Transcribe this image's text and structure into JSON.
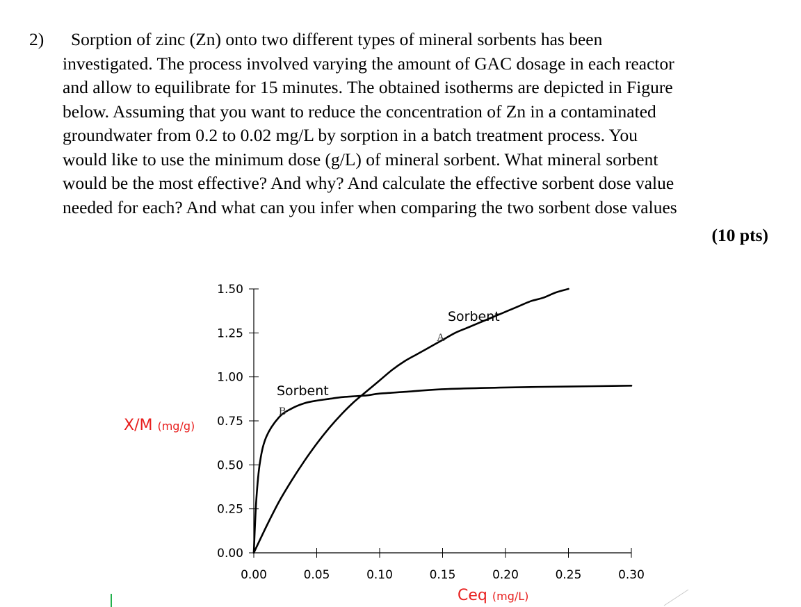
{
  "question": {
    "number": "2)",
    "lines": [
      "Sorption of zinc (Zn) onto two different types of mineral sorbents has been",
      "investigated. The process involved varying the amount of GAC dosage in each reactor",
      "and allow to equilibrate for 15 minutes. The obtained isotherms are depicted in Figure",
      "below. Assuming that you want to reduce the concentration of Zn in a contaminated",
      "groundwater from 0.2 to 0.02 mg/L by sorption in a batch treatment process. You",
      "would like to use the minimum dose (g/L) of mineral sorbent. What mineral sorbent",
      "would be the most effective? And why? And calculate the effective sorbent dose value",
      "needed for each? And what can you infer when comparing the two sorbent dose values"
    ],
    "points": "(10 pts)"
  },
  "chart_data": {
    "type": "line",
    "xlabel": "Ceq (mg/L)",
    "xlabel_main": "Ceq",
    "xlabel_unit": "(mg/L)",
    "ylabel": "X/M (mg/g)",
    "ylabel_main": "X/M",
    "ylabel_unit": "(mg/g)",
    "xlim": [
      0,
      0.3
    ],
    "ylim": [
      0,
      1.5
    ],
    "x_ticks": [
      "0.00",
      "0.05",
      "0.10",
      "0.15",
      "0.20",
      "0.25",
      "0.30"
    ],
    "y_ticks": [
      "0.00",
      "0.25",
      "0.50",
      "0.75",
      "1.00",
      "1.25",
      "1.50"
    ],
    "grid": false,
    "axis_title_color": "#e8201f",
    "series": [
      {
        "name": "Sorbent A",
        "label_word": "Sorbent",
        "label_letter": "A",
        "x": [
          0,
          0.01,
          0.02,
          0.03,
          0.04,
          0.05,
          0.06,
          0.07,
          0.08,
          0.09,
          0.1,
          0.11,
          0.12,
          0.13,
          0.14,
          0.15,
          0.16,
          0.17,
          0.18,
          0.19,
          0.2,
          0.21,
          0.22,
          0.23,
          0.24,
          0.25
        ],
        "y": [
          0,
          0.15,
          0.29,
          0.41,
          0.52,
          0.62,
          0.71,
          0.79,
          0.86,
          0.92,
          0.98,
          1.04,
          1.09,
          1.13,
          1.17,
          1.21,
          1.25,
          1.28,
          1.31,
          1.34,
          1.37,
          1.4,
          1.43,
          1.45,
          1.48,
          1.5
        ]
      },
      {
        "name": "Sorbent B",
        "label_word": "Sorbent",
        "label_letter": "B",
        "x": [
          0,
          0.002,
          0.005,
          0.01,
          0.02,
          0.03,
          0.04,
          0.05,
          0.06,
          0.07,
          0.08,
          0.09,
          0.1,
          0.12,
          0.15,
          0.2,
          0.25,
          0.3
        ],
        "y": [
          0,
          0.3,
          0.52,
          0.66,
          0.77,
          0.82,
          0.85,
          0.865,
          0.875,
          0.885,
          0.89,
          0.895,
          0.905,
          0.915,
          0.93,
          0.94,
          0.945,
          0.95
        ]
      }
    ]
  }
}
